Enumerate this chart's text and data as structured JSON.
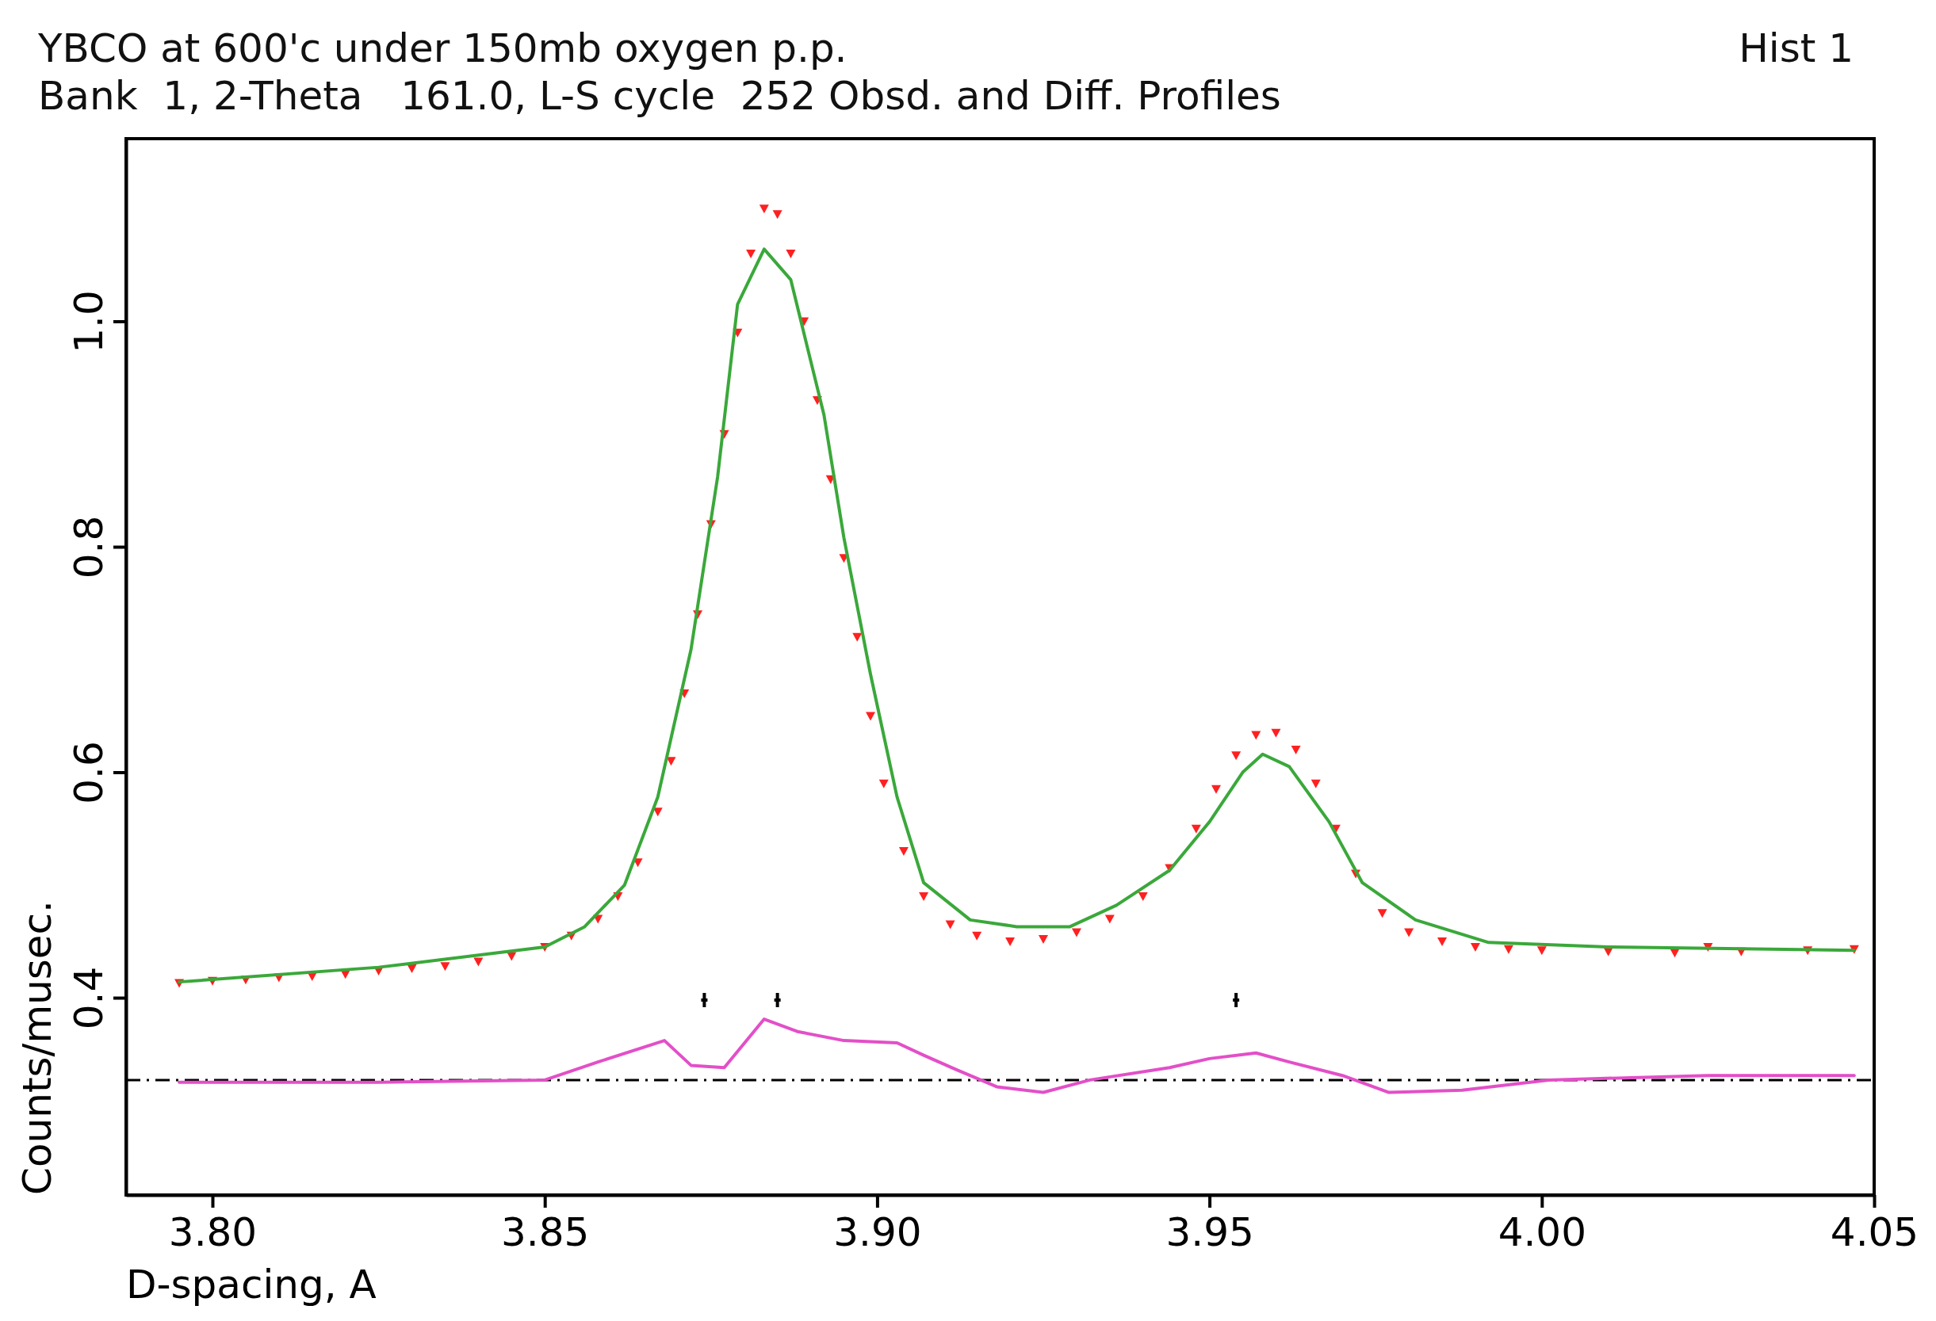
{
  "chart_data": {
    "type": "line",
    "title": "YBCO at 600'c under 150mb oxygen p.p.",
    "subtitle": "Bank  1, 2-Theta   161.0, L-S cycle  252 Obsd. and Diff. Profiles",
    "annotations": [
      "Hist   1"
    ],
    "xlabel": "D-spacing, A",
    "ylabel": "Counts/musec.",
    "xlim": [
      3.787,
      4.05
    ],
    "xticks": [
      {
        "value": 3.8,
        "label": "3.80"
      },
      {
        "value": 3.85,
        "label": "3.85"
      },
      {
        "value": 3.9,
        "label": "3.90"
      },
      {
        "value": 3.95,
        "label": "3.95"
      },
      {
        "value": 4.0,
        "label": "4.00"
      },
      {
        "value": 4.05,
        "label": "4.05"
      }
    ],
    "ylim": [
      0.225,
      1.162
    ],
    "yticks": [
      0.4,
      0.6,
      0.8,
      {
        "value": 1.0,
        "label": "1.0"
      }
    ],
    "ref_lines": [
      {
        "axis": "y",
        "value": 0.327,
        "color": "#000000",
        "line_style": "dashed"
      }
    ],
    "series": [
      {
        "type": "scatter",
        "marker": "triangle",
        "color": "#ff2020",
        "x": [
          3.795,
          3.8,
          3.805,
          3.81,
          3.815,
          3.82,
          3.825,
          3.83,
          3.835,
          3.84,
          3.845,
          3.85,
          3.854,
          3.858,
          3.861,
          3.864,
          3.867,
          3.869,
          3.871,
          3.873,
          3.875,
          3.877,
          3.879,
          3.881,
          3.883,
          3.885,
          3.887,
          3.889,
          3.891,
          3.893,
          3.895,
          3.897,
          3.899,
          3.901,
          3.904,
          3.907,
          3.911,
          3.915,
          3.92,
          3.925,
          3.93,
          3.935,
          3.94,
          3.944,
          3.948,
          3.951,
          3.954,
          3.957,
          3.96,
          3.963,
          3.966,
          3.969,
          3.972,
          3.976,
          3.98,
          3.985,
          3.99,
          3.995,
          4.0,
          4.01,
          4.02,
          4.025,
          4.03,
          4.04,
          4.047
        ],
        "values": [
          0.413,
          0.415,
          0.416,
          0.418,
          0.419,
          0.421,
          0.424,
          0.426,
          0.428,
          0.432,
          0.437,
          0.445,
          0.455,
          0.47,
          0.49,
          0.52,
          0.565,
          0.61,
          0.67,
          0.74,
          0.82,
          0.9,
          0.99,
          1.06,
          1.1,
          1.095,
          1.06,
          1.0,
          0.93,
          0.86,
          0.79,
          0.72,
          0.65,
          0.59,
          0.53,
          0.49,
          0.465,
          0.455,
          0.45,
          0.452,
          0.458,
          0.47,
          0.49,
          0.515,
          0.55,
          0.585,
          0.615,
          0.633,
          0.635,
          0.62,
          0.59,
          0.55,
          0.51,
          0.475,
          0.458,
          0.45,
          0.445,
          0.443,
          0.442,
          0.441,
          0.44,
          0.445,
          0.441,
          0.442,
          0.443
        ]
      },
      {
        "color": "#3aa83a",
        "x": [
          3.795,
          3.825,
          3.85,
          3.856,
          3.862,
          3.867,
          3.872,
          3.876,
          3.879,
          3.883,
          3.887,
          3.892,
          3.895,
          3.899,
          3.903,
          3.907,
          3.914,
          3.921,
          3.929,
          3.936,
          3.944,
          3.95,
          3.955,
          3.958,
          3.962,
          3.968,
          3.973,
          3.981,
          3.992,
          4.01,
          4.047
        ],
        "values": [
          0.414,
          0.427,
          0.445,
          0.463,
          0.5,
          0.578,
          0.709,
          0.862,
          1.015,
          1.064,
          1.037,
          0.917,
          0.808,
          0.687,
          0.578,
          0.502,
          0.469,
          0.463,
          0.463,
          0.482,
          0.513,
          0.556,
          0.6,
          0.616,
          0.605,
          0.556,
          0.502,
          0.469,
          0.449,
          0.445,
          0.442
        ]
      },
      {
        "color": "#e34fc8",
        "x": [
          3.795,
          3.825,
          3.85,
          3.858,
          3.868,
          3.872,
          3.877,
          3.883,
          3.888,
          3.895,
          3.903,
          3.907,
          3.912,
          3.918,
          3.925,
          3.932,
          3.944,
          3.95,
          3.957,
          3.962,
          3.97,
          3.977,
          3.988,
          4.001,
          4.025,
          4.047
        ],
        "values": [
          0.325,
          0.325,
          0.327,
          0.343,
          0.362,
          0.34,
          0.338,
          0.381,
          0.37,
          0.362,
          0.36,
          0.349,
          0.336,
          0.321,
          0.316,
          0.327,
          0.338,
          0.346,
          0.351,
          0.343,
          0.331,
          0.316,
          0.318,
          0.327,
          0.331,
          0.331
        ]
      },
      {
        "type": "scatter",
        "marker": "cross",
        "color": "#000000",
        "x": [
          3.874,
          3.885,
          3.954
        ],
        "values": [
          0.398,
          0.398,
          0.398
        ]
      }
    ]
  }
}
